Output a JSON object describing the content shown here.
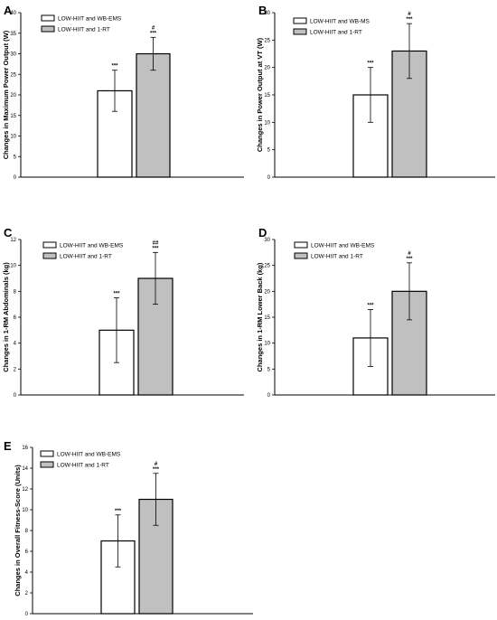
{
  "chart_data": [
    {
      "panel": "A",
      "type": "bar",
      "ylabel": "Changes in Maximum Power Output (W)",
      "ylim": [
        0,
        40
      ],
      "ticks": [
        0,
        5,
        10,
        15,
        20,
        25,
        30,
        35,
        40
      ],
      "series": [
        {
          "name": "LOW-HIIT and WB-EMS",
          "value": 21,
          "error": 5,
          "annotation": "***"
        },
        {
          "name": "LOW-HIIT and 1-RT",
          "value": 30,
          "error": 4,
          "annotation": "***",
          "annotation2": "#"
        }
      ]
    },
    {
      "panel": "B",
      "type": "bar",
      "ylabel": "Changes in Power Output at VT (W)",
      "ylim": [
        0,
        30
      ],
      "ticks": [
        0,
        5,
        10,
        15,
        20,
        25,
        30
      ],
      "series": [
        {
          "name": "LOW-HIIT and WB-MS",
          "value": 15,
          "error": 5,
          "annotation": "***"
        },
        {
          "name": "LOW-HIIT and 1-RT",
          "value": 23,
          "error": 5,
          "annotation": "***",
          "annotation2": "#"
        }
      ]
    },
    {
      "panel": "C",
      "type": "bar",
      "ylabel": "Changes in 1-RM Abdominals (kg)",
      "ylim": [
        0,
        12
      ],
      "ticks": [
        0,
        2,
        4,
        6,
        8,
        10,
        12
      ],
      "series": [
        {
          "name": "LOW-HIIT and WB-EMS",
          "value": 5,
          "error": 2.5,
          "annotation": "***"
        },
        {
          "name": "LOW-HIIT and 1-RT",
          "value": 9,
          "error": 2,
          "annotation": "***",
          "annotation2": "##"
        }
      ]
    },
    {
      "panel": "D",
      "type": "bar",
      "ylabel": "Changes in 1-RM Lower Back (kg)",
      "ylim": [
        0,
        30
      ],
      "ticks": [
        0,
        5,
        10,
        15,
        20,
        25,
        30
      ],
      "series": [
        {
          "name": "LOW-HIIT and WB-EMS",
          "value": 11,
          "error": 5.5,
          "annotation": "***"
        },
        {
          "name": "LOW-HIIT and 1-RT",
          "value": 20,
          "error": 5.5,
          "annotation": "***",
          "annotation2": "#"
        }
      ]
    },
    {
      "panel": "E",
      "type": "bar",
      "ylabel": "Changes in Overall Fitness-Score (Units)",
      "ylim": [
        0,
        16
      ],
      "ticks": [
        0,
        2,
        4,
        6,
        8,
        10,
        12,
        14,
        16
      ],
      "series": [
        {
          "name": "LOW-HIIT and WB-EMS",
          "value": 7,
          "error": 2.5,
          "annotation": "***"
        },
        {
          "name": "LOW-HIIT and 1-RT",
          "value": 11,
          "error": 2.5,
          "annotation": "***",
          "annotation2": "#"
        }
      ]
    }
  ],
  "colors": {
    "series1_fill": "#ffffff",
    "series2_fill": "#c0c0c0",
    "stroke": "#000000"
  }
}
